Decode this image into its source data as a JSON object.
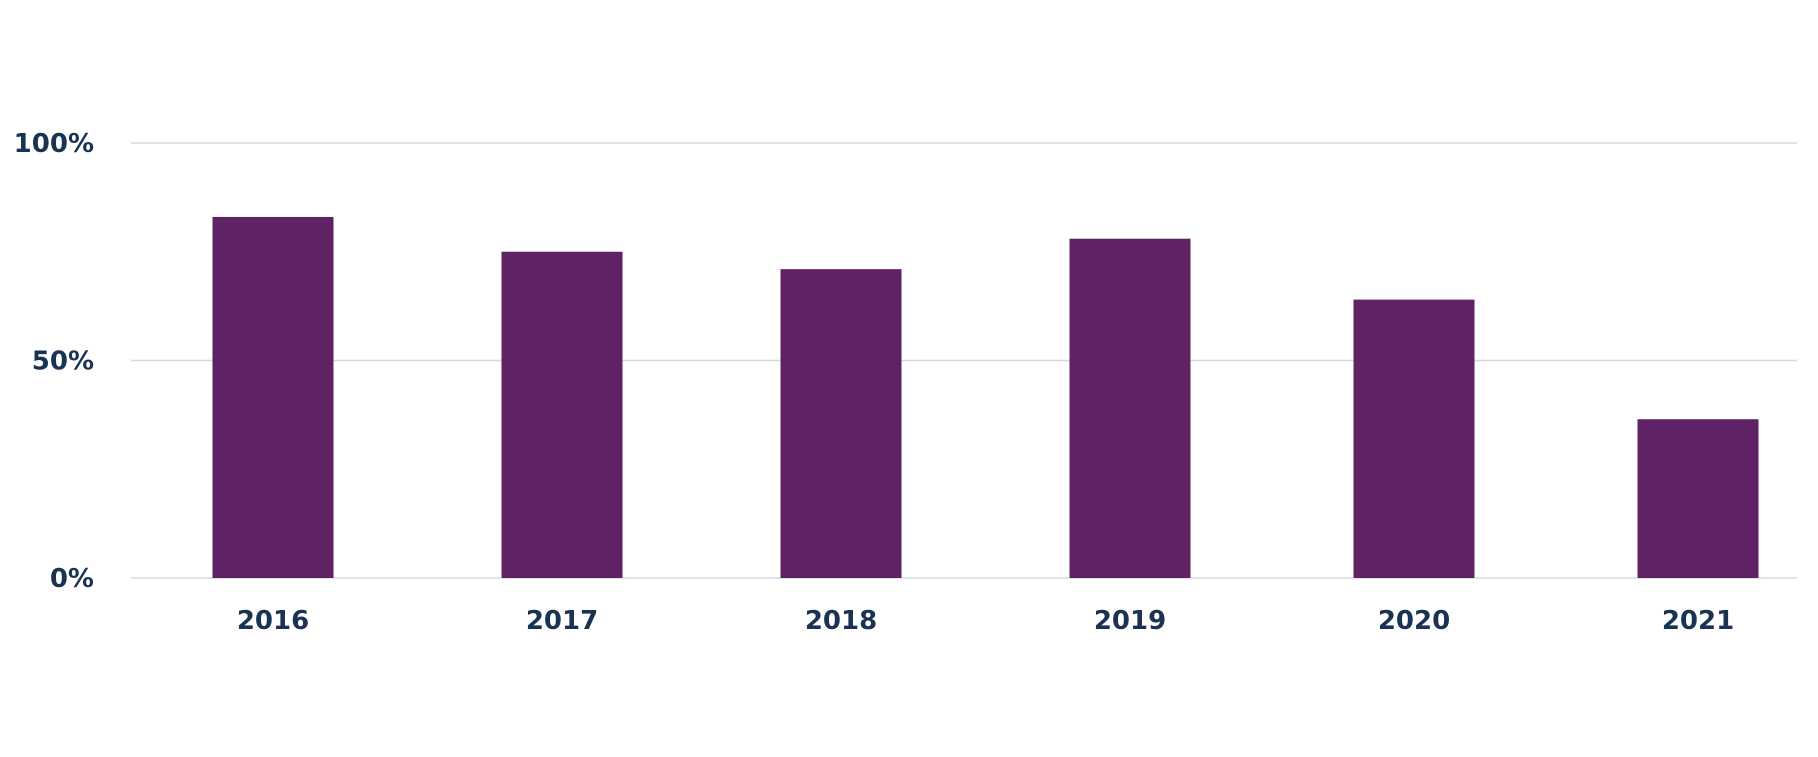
{
  "colors": {
    "bar": "#5e2265",
    "grid": "#d5d9de",
    "text": "#1a3352"
  },
  "chart_data": {
    "type": "bar",
    "title": "",
    "xlabel": "",
    "ylabel": "",
    "categories": [
      "2016",
      "2017",
      "2018",
      "2019",
      "2020",
      "2021"
    ],
    "series": [
      {
        "values": [
          83,
          75,
          71,
          78,
          64,
          36.5
        ]
      }
    ],
    "ylim": [
      0,
      100
    ],
    "yticks": [
      0,
      50,
      100
    ],
    "ytick_labels": [
      "0%",
      "50%",
      "100%"
    ],
    "grid": true,
    "legend": "none"
  }
}
